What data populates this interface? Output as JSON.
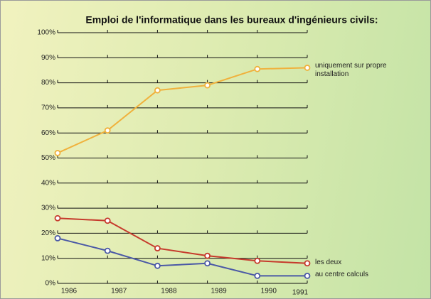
{
  "chart_data": {
    "type": "line",
    "title": "Emploi de l'informatique dans les bureaux d'ingénieurs civils:",
    "x": [
      1986,
      1987,
      1988,
      1989,
      1990,
      1991
    ],
    "xlim": [
      1986,
      1991
    ],
    "xticks": [
      1986,
      1987,
      1988,
      1989,
      1990,
      1991
    ],
    "ylim": [
      0,
      100
    ],
    "yticks": [
      {
        "value": 0,
        "label": "0%"
      },
      {
        "value": 10,
        "label": "10%"
      },
      {
        "value": 20,
        "label": "20%"
      },
      {
        "value": 30,
        "label": "30%"
      },
      {
        "value": 40,
        "label": "40%"
      },
      {
        "value": 50,
        "label": "50%"
      },
      {
        "value": 60,
        "label": "60%"
      },
      {
        "value": 70,
        "label": "70%"
      },
      {
        "value": 80,
        "label": "80%"
      },
      {
        "value": 90,
        "label": "90%"
      },
      {
        "value": 100,
        "label": "100%"
      }
    ],
    "grid": true,
    "series": [
      {
        "name": "uniquement sur propre installation",
        "color": "#f0b13c",
        "values": [
          52,
          61,
          77,
          79,
          85.5,
          86
        ]
      },
      {
        "name": "les deux",
        "color": "#c63a2c",
        "values": [
          26,
          25,
          14,
          11,
          9,
          8
        ]
      },
      {
        "name": "au centre calculs",
        "color": "#4a58a6",
        "values": [
          18,
          13,
          7,
          8,
          3,
          3
        ]
      }
    ]
  }
}
